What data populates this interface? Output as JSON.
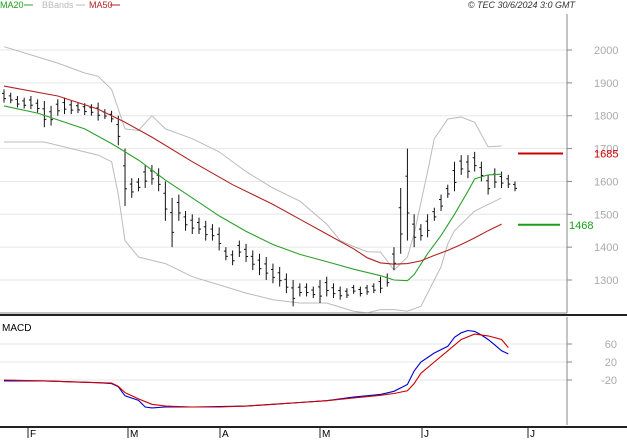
{
  "header": {
    "legend": [
      {
        "label": "MA20",
        "color": "#2ca02c"
      },
      {
        "label": "BBands",
        "color": "#bbbbbb"
      },
      {
        "label": "MA50",
        "color": "#b22222"
      }
    ],
    "copyright": "© TEC 30/6/2024 3:0 GMT"
  },
  "chart_data": [
    {
      "type": "line",
      "panel": "price",
      "ylim": [
        1200,
        2050
      ],
      "yticks": [
        "2000",
        "1900",
        "1800",
        "1700",
        "1600",
        "1500",
        "1400",
        "1300"
      ],
      "xticks": [
        "F",
        "M",
        "A",
        "M",
        "J",
        "J"
      ],
      "grid": true,
      "price_label": {
        "value": "1685",
        "color": "#cc0000"
      },
      "ma_label": {
        "value": "1468",
        "color": "#1a9e1a"
      },
      "series": [
        {
          "name": "MA20",
          "color": "#2ca02c",
          "values": [
            [
              0,
              1830
            ],
            [
              5,
              1808
            ],
            [
              12,
              1760
            ],
            [
              16,
              1715
            ],
            [
              20,
              1665
            ],
            [
              24,
              1604
            ],
            [
              28,
              1550
            ],
            [
              32,
              1495
            ],
            [
              36,
              1448
            ],
            [
              40,
              1408
            ],
            [
              44,
              1378
            ],
            [
              48,
              1356
            ],
            [
              52,
              1333
            ],
            [
              56,
              1313
            ],
            [
              58,
              1300
            ],
            [
              60,
              1298
            ],
            [
              61,
              1316
            ],
            [
              63,
              1380
            ],
            [
              65,
              1435
            ],
            [
              67,
              1500
            ],
            [
              69,
              1570
            ],
            [
              70,
              1608
            ],
            [
              72,
              1620
            ],
            [
              74,
              1622
            ]
          ]
        },
        {
          "name": "MA50",
          "color": "#b22222",
          "values": [
            [
              0,
              1890
            ],
            [
              8,
              1860
            ],
            [
              14,
              1820
            ],
            [
              18,
              1780
            ],
            [
              22,
              1735
            ],
            [
              28,
              1660
            ],
            [
              34,
              1590
            ],
            [
              40,
              1530
            ],
            [
              44,
              1485
            ],
            [
              48,
              1440
            ],
            [
              52,
              1395
            ],
            [
              54,
              1368
            ],
            [
              56,
              1352
            ],
            [
              58,
              1348
            ],
            [
              60,
              1350
            ],
            [
              62,
              1358
            ],
            [
              64,
              1375
            ],
            [
              66,
              1390
            ],
            [
              68,
              1408
            ],
            [
              70,
              1428
            ],
            [
              72,
              1450
            ],
            [
              74,
              1470
            ]
          ]
        },
        {
          "name": "BBands upper",
          "color": "#bbbbbb",
          "values": [
            [
              0,
              2010
            ],
            [
              4,
              1985
            ],
            [
              8,
              1960
            ],
            [
              12,
              1930
            ],
            [
              14,
              1920
            ],
            [
              16,
              1880
            ],
            [
              18,
              1760
            ],
            [
              20,
              1755
            ],
            [
              22,
              1800
            ],
            [
              24,
              1760
            ],
            [
              28,
              1730
            ],
            [
              32,
              1690
            ],
            [
              36,
              1630
            ],
            [
              40,
              1580
            ],
            [
              44,
              1540
            ],
            [
              48,
              1470
            ],
            [
              50,
              1420
            ],
            [
              52,
              1402
            ],
            [
              54,
              1386
            ],
            [
              56,
              1385
            ],
            [
              58,
              1330
            ],
            [
              60,
              1370
            ],
            [
              61,
              1440
            ],
            [
              63,
              1630
            ],
            [
              64,
              1730
            ],
            [
              66,
              1790
            ],
            [
              68,
              1796
            ],
            [
              70,
              1780
            ],
            [
              72,
              1705
            ],
            [
              74,
              1708
            ]
          ]
        },
        {
          "name": "BBands lower",
          "color": "#bbbbbb",
          "values": [
            [
              0,
              1720
            ],
            [
              6,
              1720
            ],
            [
              10,
              1700
            ],
            [
              14,
              1680
            ],
            [
              16,
              1660
            ],
            [
              17,
              1560
            ],
            [
              18,
              1420
            ],
            [
              20,
              1370
            ],
            [
              24,
              1350
            ],
            [
              28,
              1310
            ],
            [
              32,
              1285
            ],
            [
              36,
              1260
            ],
            [
              40,
              1240
            ],
            [
              44,
              1230
            ],
            [
              48,
              1230
            ],
            [
              52,
              1205
            ],
            [
              54,
              1200
            ],
            [
              56,
              1210
            ],
            [
              58,
              1210
            ],
            [
              60,
              1205
            ],
            [
              62,
              1220
            ],
            [
              64,
              1300
            ],
            [
              65,
              1340
            ],
            [
              66,
              1410
            ],
            [
              67,
              1450
            ],
            [
              68,
              1470
            ],
            [
              70,
              1510
            ],
            [
              72,
              1530
            ],
            [
              74,
              1550
            ]
          ]
        }
      ],
      "ohlc": [
        {
          "x": 0,
          "h": 1880,
          "l": 1840
        },
        {
          "x": 1,
          "h": 1870,
          "l": 1838
        },
        {
          "x": 2,
          "h": 1860,
          "l": 1825
        },
        {
          "x": 3,
          "h": 1855,
          "l": 1822
        },
        {
          "x": 4,
          "h": 1860,
          "l": 1820
        },
        {
          "x": 5,
          "h": 1850,
          "l": 1810
        },
        {
          "x": 6,
          "h": 1845,
          "l": 1765
        },
        {
          "x": 7,
          "h": 1830,
          "l": 1770
        },
        {
          "x": 8,
          "h": 1850,
          "l": 1800
        },
        {
          "x": 9,
          "h": 1855,
          "l": 1805
        },
        {
          "x": 10,
          "h": 1845,
          "l": 1805
        },
        {
          "x": 11,
          "h": 1840,
          "l": 1808
        },
        {
          "x": 12,
          "h": 1838,
          "l": 1802
        },
        {
          "x": 13,
          "h": 1835,
          "l": 1800
        },
        {
          "x": 14,
          "h": 1840,
          "l": 1785
        },
        {
          "x": 15,
          "h": 1820,
          "l": 1790
        },
        {
          "x": 16,
          "h": 1815,
          "l": 1780
        },
        {
          "x": 17,
          "h": 1800,
          "l": 1710
        },
        {
          "x": 18,
          "h": 1700,
          "l": 1525
        },
        {
          "x": 19,
          "h": 1610,
          "l": 1550
        },
        {
          "x": 20,
          "h": 1610,
          "l": 1570
        },
        {
          "x": 21,
          "h": 1650,
          "l": 1580
        },
        {
          "x": 22,
          "h": 1650,
          "l": 1590
        },
        {
          "x": 23,
          "h": 1640,
          "l": 1570
        },
        {
          "x": 24,
          "h": 1600,
          "l": 1480
        },
        {
          "x": 25,
          "h": 1550,
          "l": 1400
        },
        {
          "x": 26,
          "h": 1560,
          "l": 1480
        },
        {
          "x": 27,
          "h": 1510,
          "l": 1450
        },
        {
          "x": 28,
          "h": 1500,
          "l": 1440
        },
        {
          "x": 29,
          "h": 1490,
          "l": 1440
        },
        {
          "x": 30,
          "h": 1480,
          "l": 1420
        },
        {
          "x": 31,
          "h": 1470,
          "l": 1420
        },
        {
          "x": 32,
          "h": 1460,
          "l": 1390
        },
        {
          "x": 33,
          "h": 1400,
          "l": 1360
        },
        {
          "x": 34,
          "h": 1390,
          "l": 1345
        },
        {
          "x": 35,
          "h": 1420,
          "l": 1370
        },
        {
          "x": 36,
          "h": 1410,
          "l": 1355
        },
        {
          "x": 37,
          "h": 1390,
          "l": 1330
        },
        {
          "x": 38,
          "h": 1380,
          "l": 1315
        },
        {
          "x": 39,
          "h": 1370,
          "l": 1300
        },
        {
          "x": 40,
          "h": 1350,
          "l": 1290
        },
        {
          "x": 41,
          "h": 1340,
          "l": 1280
        },
        {
          "x": 42,
          "h": 1320,
          "l": 1260
        },
        {
          "x": 43,
          "h": 1300,
          "l": 1220
        },
        {
          "x": 44,
          "h": 1290,
          "l": 1250
        },
        {
          "x": 45,
          "h": 1290,
          "l": 1250
        },
        {
          "x": 46,
          "h": 1280,
          "l": 1245
        },
        {
          "x": 47,
          "h": 1300,
          "l": 1230
        },
        {
          "x": 48,
          "h": 1310,
          "l": 1250
        },
        {
          "x": 49,
          "h": 1290,
          "l": 1245
        },
        {
          "x": 50,
          "h": 1280,
          "l": 1240
        },
        {
          "x": 51,
          "h": 1275,
          "l": 1245
        },
        {
          "x": 52,
          "h": 1285,
          "l": 1258
        },
        {
          "x": 53,
          "h": 1280,
          "l": 1250
        },
        {
          "x": 54,
          "h": 1285,
          "l": 1255
        },
        {
          "x": 55,
          "h": 1290,
          "l": 1260
        },
        {
          "x": 56,
          "h": 1310,
          "l": 1260
        },
        {
          "x": 57,
          "h": 1320,
          "l": 1280
        },
        {
          "x": 58,
          "h": 1400,
          "l": 1330
        },
        {
          "x": 59,
          "h": 1580,
          "l": 1380
        },
        {
          "x": 60,
          "h": 1700,
          "l": 1420
        },
        {
          "x": 61,
          "h": 1500,
          "l": 1400
        },
        {
          "x": 62,
          "h": 1470,
          "l": 1420
        },
        {
          "x": 63,
          "h": 1500,
          "l": 1430
        },
        {
          "x": 64,
          "h": 1520,
          "l": 1480
        },
        {
          "x": 65,
          "h": 1560,
          "l": 1510
        },
        {
          "x": 66,
          "h": 1590,
          "l": 1550
        },
        {
          "x": 67,
          "h": 1660,
          "l": 1570
        },
        {
          "x": 68,
          "h": 1680,
          "l": 1620
        },
        {
          "x": 69,
          "h": 1680,
          "l": 1610
        },
        {
          "x": 70,
          "h": 1690,
          "l": 1630
        },
        {
          "x": 71,
          "h": 1660,
          "l": 1600
        },
        {
          "x": 72,
          "h": 1620,
          "l": 1560
        },
        {
          "x": 73,
          "h": 1640,
          "l": 1580
        },
        {
          "x": 74,
          "h": 1630,
          "l": 1580
        },
        {
          "x": 75,
          "h": 1620,
          "l": 1580
        },
        {
          "x": 76,
          "h": 1600,
          "l": 1570
        }
      ]
    },
    {
      "type": "line",
      "panel": "macd",
      "title": "MACD",
      "ylim": [
        -100,
        120
      ],
      "yticks": [
        "60",
        "20",
        "-20"
      ],
      "series": [
        {
          "name": "MACD",
          "color": "#0000cc",
          "values": [
            [
              0,
              -22
            ],
            [
              6,
              -22
            ],
            [
              10,
              -24
            ],
            [
              14,
              -26
            ],
            [
              16,
              -28
            ],
            [
              17,
              -35
            ],
            [
              18,
              -55
            ],
            [
              20,
              -65
            ],
            [
              21,
              -80
            ],
            [
              22,
              -82
            ],
            [
              24,
              -80
            ],
            [
              28,
              -80
            ],
            [
              32,
              -79
            ],
            [
              36,
              -78
            ],
            [
              40,
              -74
            ],
            [
              44,
              -70
            ],
            [
              48,
              -66
            ],
            [
              52,
              -58
            ],
            [
              56,
              -52
            ],
            [
              58,
              -45
            ],
            [
              60,
              -30
            ],
            [
              61,
              0
            ],
            [
              62,
              20
            ],
            [
              64,
              40
            ],
            [
              66,
              55
            ],
            [
              67,
              75
            ],
            [
              68,
              85
            ],
            [
              69,
              90
            ],
            [
              70,
              88
            ],
            [
              71,
              80
            ],
            [
              72,
              70
            ],
            [
              73,
              58
            ],
            [
              74,
              45
            ],
            [
              75,
              38
            ]
          ]
        },
        {
          "name": "Signal",
          "color": "#cc0000",
          "values": [
            [
              0,
              -20
            ],
            [
              6,
              -22
            ],
            [
              10,
              -24
            ],
            [
              14,
              -26
            ],
            [
              16,
              -27
            ],
            [
              17,
              -34
            ],
            [
              18,
              -48
            ],
            [
              20,
              -62
            ],
            [
              22,
              -74
            ],
            [
              24,
              -78
            ],
            [
              28,
              -80
            ],
            [
              32,
              -80
            ],
            [
              36,
              -78
            ],
            [
              40,
              -74
            ],
            [
              44,
              -70
            ],
            [
              48,
              -66
            ],
            [
              52,
              -60
            ],
            [
              56,
              -54
            ],
            [
              58,
              -50
            ],
            [
              60,
              -44
            ],
            [
              61,
              -28
            ],
            [
              62,
              -5
            ],
            [
              64,
              20
            ],
            [
              66,
              45
            ],
            [
              68,
              70
            ],
            [
              70,
              82
            ],
            [
              72,
              78
            ],
            [
              74,
              70
            ],
            [
              75,
              52
            ]
          ]
        }
      ]
    }
  ]
}
